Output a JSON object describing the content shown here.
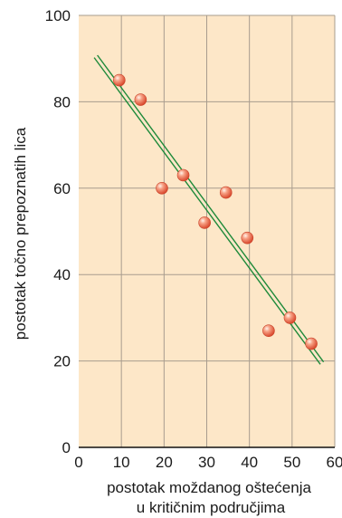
{
  "chart_data": {
    "type": "scatter",
    "xlabel_lines": [
      "postotak moždanog oštećenja",
      "u kritičnim područjima"
    ],
    "ylabel": "postotak točno prepoznatih lica",
    "xlim": [
      0,
      60
    ],
    "ylim": [
      0,
      100
    ],
    "x_ticks": [
      0,
      10,
      20,
      30,
      40,
      50,
      60
    ],
    "y_ticks": [
      0,
      20,
      40,
      60,
      80,
      100
    ],
    "grid": true,
    "points": [
      {
        "x": 9.5,
        "y": 85
      },
      {
        "x": 14.5,
        "y": 80.5
      },
      {
        "x": 19.5,
        "y": 60
      },
      {
        "x": 24.5,
        "y": 63
      },
      {
        "x": 29.5,
        "y": 52
      },
      {
        "x": 34.5,
        "y": 59
      },
      {
        "x": 39.5,
        "y": 48.5
      },
      {
        "x": 44.5,
        "y": 27
      },
      {
        "x": 49.5,
        "y": 30
      },
      {
        "x": 54.5,
        "y": 24
      }
    ],
    "trend_line": {
      "x": [
        4,
        57
      ],
      "y": [
        90.5,
        19.5
      ]
    }
  },
  "colors": {
    "plot_background": "#fde7c8",
    "grid": "#a89c8e",
    "axis": "#111111",
    "point": "#ef6a4a",
    "trend_line": "#1e8a3a"
  }
}
